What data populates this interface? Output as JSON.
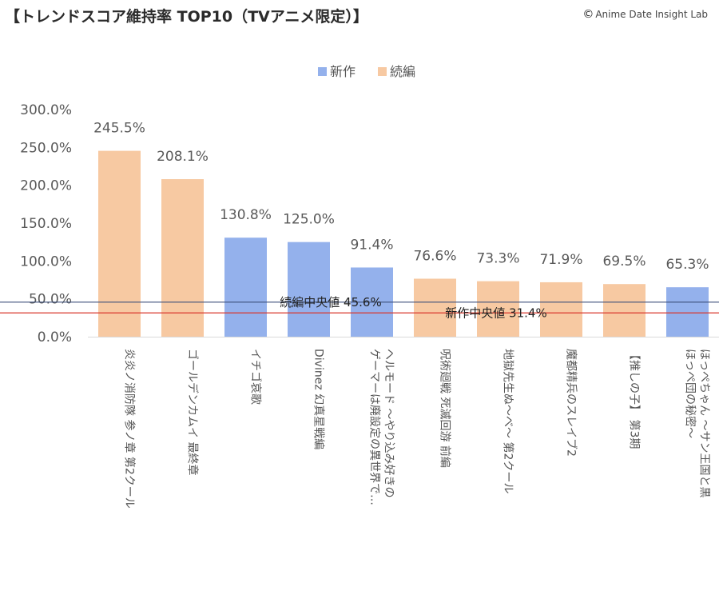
{
  "header": {
    "title": "【トレンドスコア維持率 TOP10（TVアニメ限定）】",
    "credit_icon": "copyright-icon",
    "credit_text": "Anime Date Insight Lab"
  },
  "chart_data": {
    "type": "bar",
    "title": "【トレンドスコア維持率 TOP10（TVアニメ限定）】",
    "legend": [
      "新作",
      "続編"
    ],
    "legend_position": "top-center",
    "colors": {
      "新作": "#94b1ec",
      "続編": "#f7c9a2"
    },
    "grid": false,
    "ylim": [
      0,
      300
    ],
    "y_ticks": [
      "0.0%",
      "50.0%",
      "100.0%",
      "150.0%",
      "200.0%",
      "250.0%",
      "300.0%"
    ],
    "bars": [
      {
        "category": [
          "炎炎ノ消防隊 参ノ章 第2クール"
        ],
        "value": 245.5,
        "label": "245.5%",
        "series": "続編"
      },
      {
        "category": [
          "ゴールデンカムイ 最終章"
        ],
        "value": 208.1,
        "label": "208.1%",
        "series": "続編"
      },
      {
        "category": [
          "イチゴ哀歌"
        ],
        "value": 130.8,
        "label": "130.8%",
        "series": "新作"
      },
      {
        "category": [
          "Divinez 幻真星戦編"
        ],
        "value": 125.0,
        "label": "125.0%",
        "series": "新作"
      },
      {
        "category": [
          "ヘルモード ～やり込み好きの",
          "ゲーマーは廃設定の異世界で…"
        ],
        "value": 91.4,
        "label": "91.4%",
        "series": "新作"
      },
      {
        "category": [
          "呪術廻戦 死滅回游 前編"
        ],
        "value": 76.6,
        "label": "76.6%",
        "series": "続編"
      },
      {
        "category": [
          "地獄先生ぬ～べ～ 第2クール"
        ],
        "value": 73.3,
        "label": "73.3%",
        "series": "続編"
      },
      {
        "category": [
          "魔都精兵のスレイブ2"
        ],
        "value": 71.9,
        "label": "71.9%",
        "series": "続編"
      },
      {
        "category": [
          "【推しの子】 第3期"
        ],
        "value": 69.5,
        "label": "69.5%",
        "series": "続編"
      },
      {
        "category": [
          "ほっぺちゃん ～サン王国と黒",
          "ほっぺ団の秘密～"
        ],
        "value": 65.3,
        "label": "65.3%",
        "series": "新作"
      }
    ],
    "reference_lines": [
      {
        "label": "続編中央値 45.6%",
        "value": 45.6,
        "color": "#3b4f7a"
      },
      {
        "label": "新作中央値 31.4%",
        "value": 31.4,
        "color": "#d9362b"
      }
    ]
  }
}
